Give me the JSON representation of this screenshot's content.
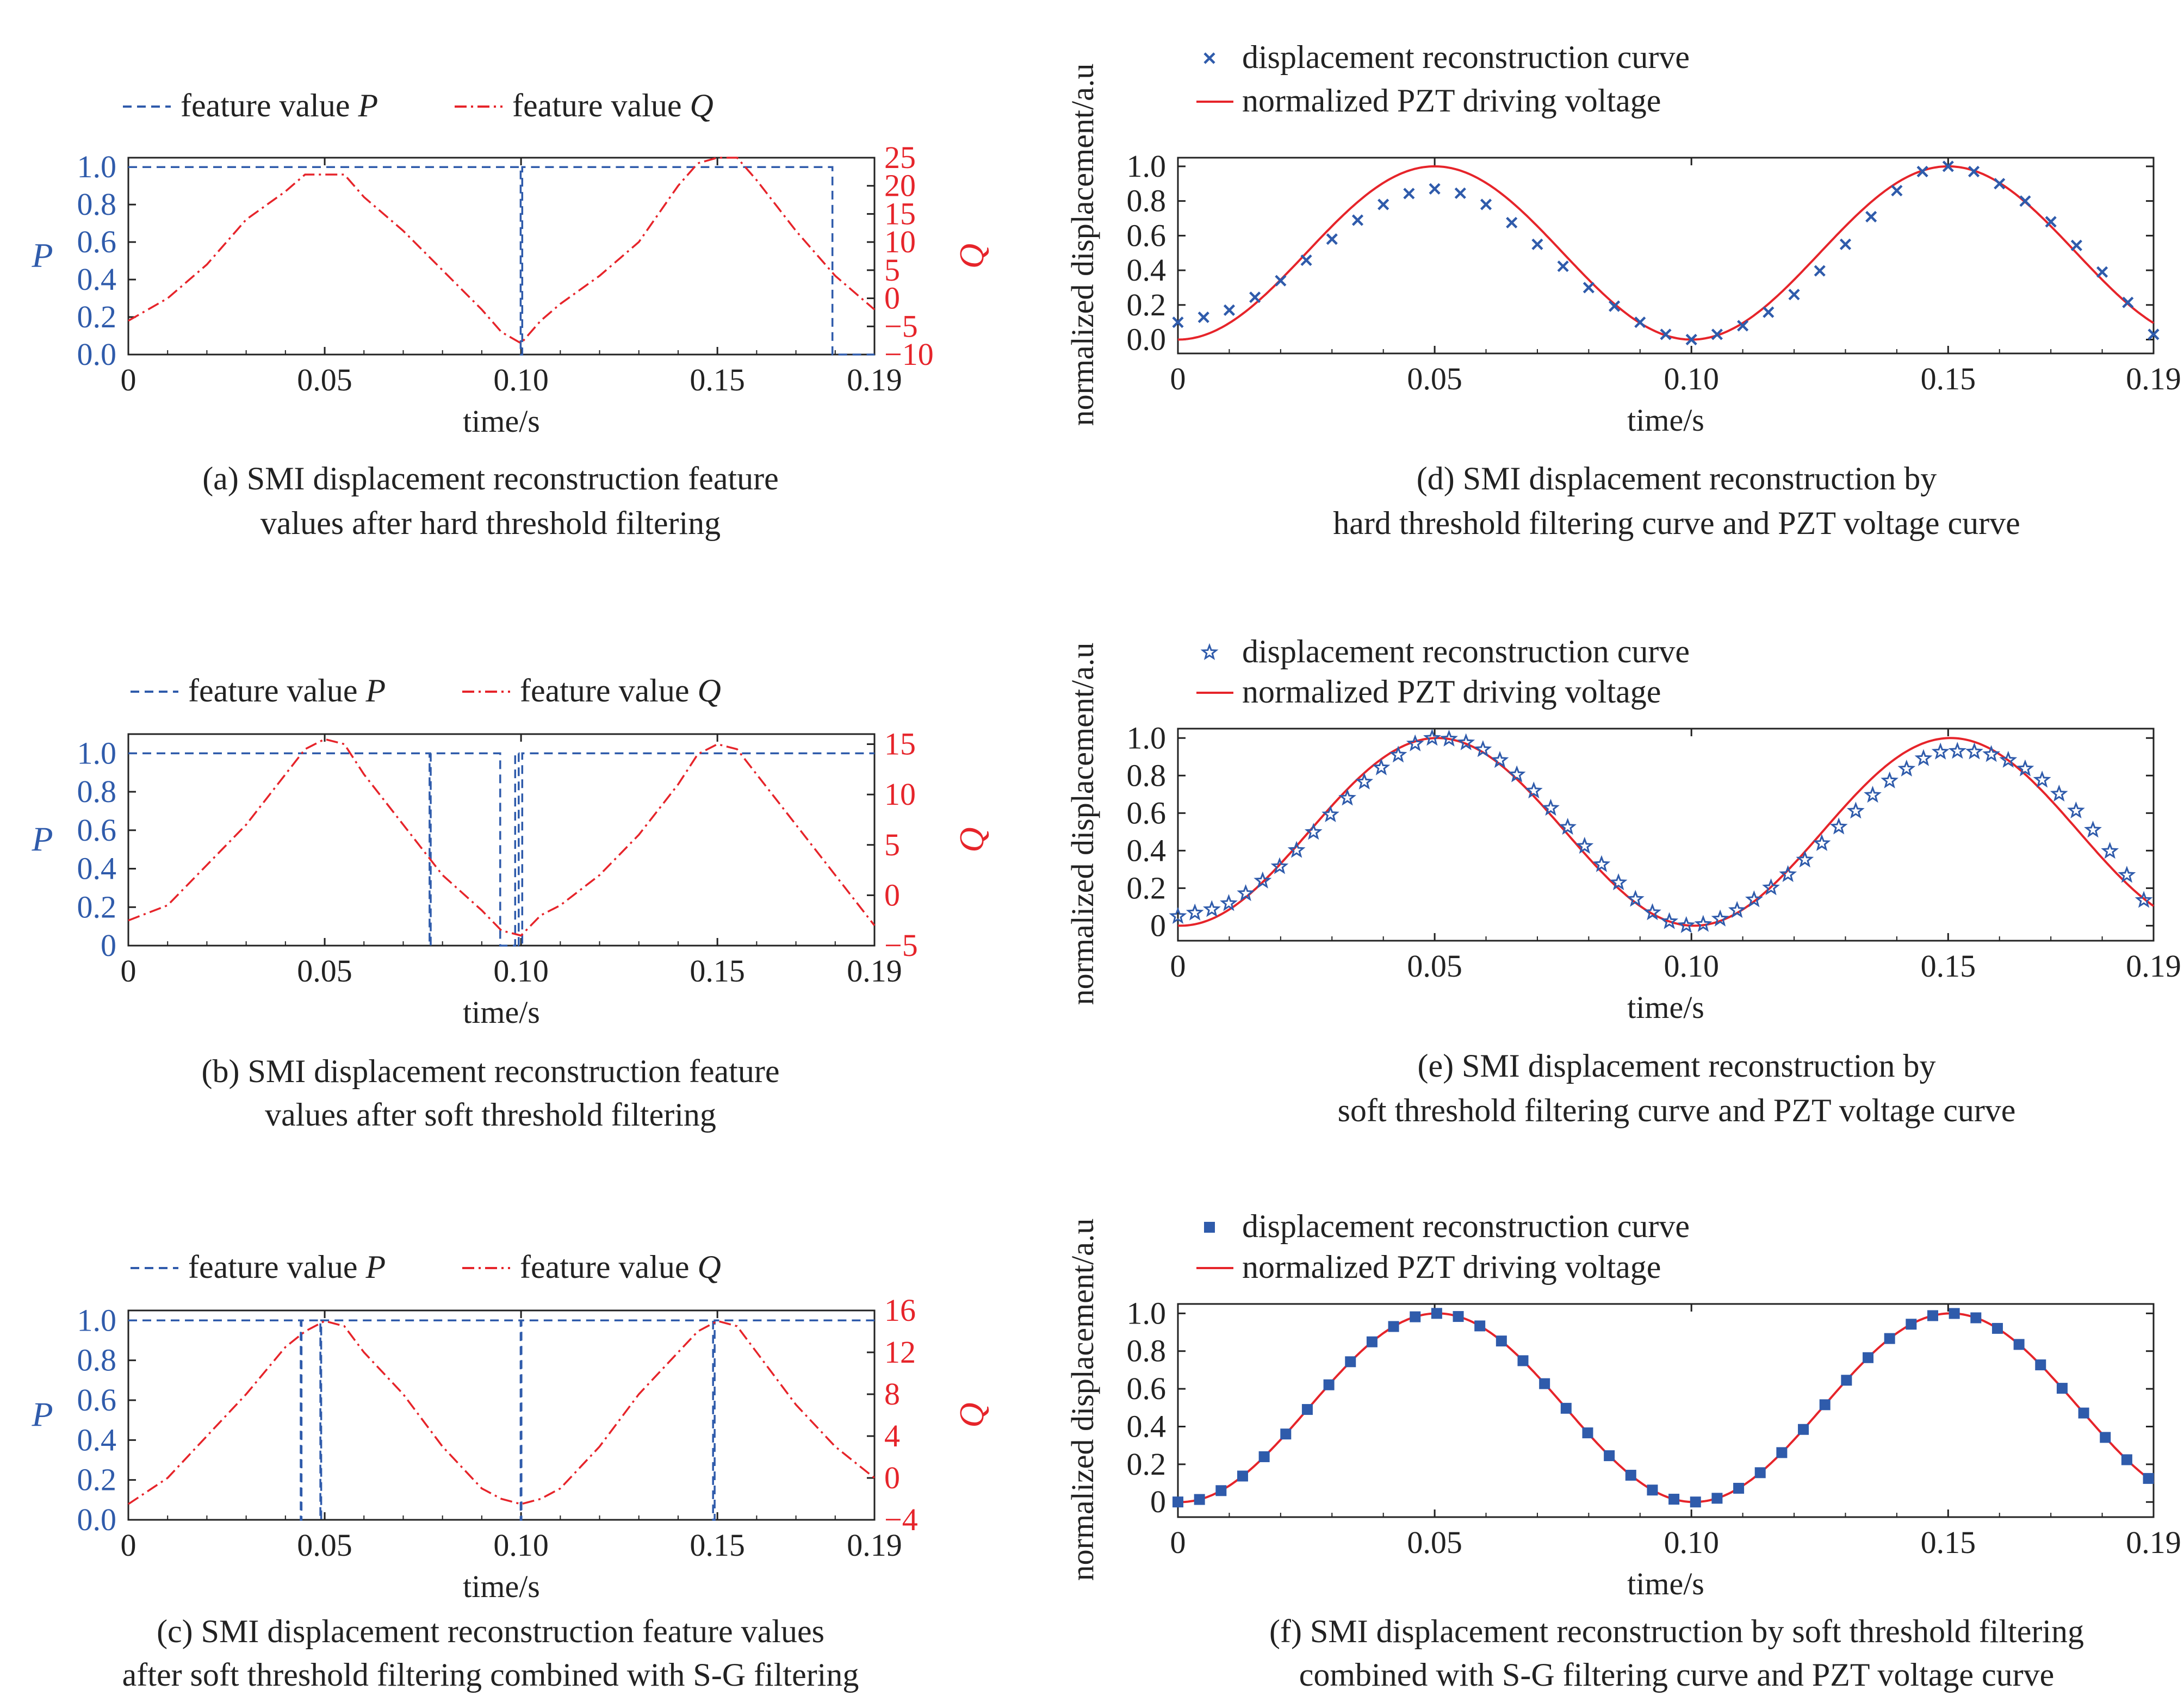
{
  "colors": {
    "p_series": "#2f5bab",
    "q_series": "#e6242a",
    "axis": "#222222",
    "text": "#222222"
  },
  "chart_data": [
    {
      "id": "a",
      "type": "line",
      "dual_axis": true,
      "caption": [
        "(a)  SMI displacement reconstruction feature",
        "values after hard threshold filtering"
      ],
      "xlabel": "time/s",
      "ylabel": "P",
      "y2label": "Q",
      "xlim": [
        0,
        0.19
      ],
      "xticks": [
        "0",
        "0.05",
        "0.10",
        "0.15",
        "0.19"
      ],
      "ylim": [
        0,
        1.05
      ],
      "yticks": [
        "0.0",
        "0.2",
        "0.4",
        "0.6",
        "0.8",
        "1.0"
      ],
      "y2lim": [
        -10,
        25
      ],
      "y2ticks": [
        "25",
        "20",
        "15",
        "10",
        "5",
        "0",
        "−5",
        "−10"
      ],
      "legend": [
        {
          "label": "feature value",
          "var": "P",
          "style": "dashed",
          "color": "#2f5bab"
        },
        {
          "label": "feature value",
          "var": "Q",
          "style": "dashdot",
          "color": "#e6242a"
        }
      ],
      "series": [
        {
          "name": "feature value P",
          "axis": "left",
          "x": [
            0,
            0.0999,
            0.0999,
            0.1003,
            0.1003,
            0.1793,
            0.1793,
            0.19
          ],
          "y": [
            1,
            1,
            0,
            0,
            1,
            1,
            0,
            0
          ]
        },
        {
          "name": "feature value Q",
          "axis": "right",
          "x": [
            0,
            0.01,
            0.02,
            0.03,
            0.04,
            0.045,
            0.05,
            0.055,
            0.06,
            0.07,
            0.08,
            0.09,
            0.095,
            0.1,
            0.105,
            0.11,
            0.12,
            0.13,
            0.14,
            0.145,
            0.15,
            0.155,
            0.16,
            0.17,
            0.18,
            0.19
          ],
          "y": [
            -4,
            0,
            6,
            14,
            19,
            22,
            22,
            22,
            18,
            12,
            5,
            -2,
            -6,
            -8,
            -4,
            -1,
            4,
            10,
            20,
            24,
            25,
            25,
            21,
            12,
            4,
            -2
          ]
        }
      ]
    },
    {
      "id": "b",
      "type": "line",
      "dual_axis": true,
      "caption": [
        "(b) SMI displacement reconstruction feature",
        "values after soft threshold filtering"
      ],
      "xlabel": "time/s",
      "ylabel": "P",
      "y2label": "Q",
      "xlim": [
        0,
        0.19
      ],
      "xticks": [
        "0",
        "0.05",
        "0.10",
        "0.15",
        "0.19"
      ],
      "ylim": [
        0,
        1.1
      ],
      "yticks": [
        "0",
        "0.2",
        "0.4",
        "0.6",
        "0.8",
        "1.0"
      ],
      "y2lim": [
        -5,
        16
      ],
      "y2ticks": [
        "15",
        "10",
        "5",
        "0",
        "−5"
      ],
      "legend": [
        {
          "label": "feature value",
          "var": "P",
          "style": "dashed",
          "color": "#2f5bab"
        },
        {
          "label": "feature value",
          "var": "Q",
          "style": "dashdot",
          "color": "#e6242a"
        }
      ],
      "series": [
        {
          "name": "feature value P",
          "axis": "left",
          "x": [
            0,
            0.0767,
            0.0767,
            0.077,
            0.077,
            0.0947,
            0.0947,
            0.0985,
            0.0985,
            0.0994,
            0.0994,
            0.1003,
            0.1003,
            0.19
          ],
          "y": [
            1,
            1,
            0,
            0,
            1,
            1,
            0,
            0,
            1,
            1,
            0,
            0,
            1,
            1
          ]
        },
        {
          "name": "feature value Q",
          "axis": "right",
          "x": [
            0,
            0.01,
            0.02,
            0.03,
            0.04,
            0.045,
            0.05,
            0.055,
            0.06,
            0.07,
            0.08,
            0.09,
            0.095,
            0.1,
            0.105,
            0.11,
            0.12,
            0.13,
            0.14,
            0.145,
            0.15,
            0.155,
            0.16,
            0.17,
            0.18,
            0.19
          ],
          "y": [
            -2.5,
            -1,
            3,
            7,
            12,
            14.5,
            15.5,
            15,
            12,
            7,
            2,
            -1.5,
            -3.5,
            -4,
            -2,
            -1,
            2,
            6,
            11,
            14,
            15,
            14.5,
            12,
            7,
            2,
            -3
          ]
        }
      ]
    },
    {
      "id": "c",
      "type": "line",
      "dual_axis": true,
      "caption": [
        "(c) SMI displacement reconstruction feature values",
        "after soft threshold filtering combined with S-G filtering"
      ],
      "xlabel": "time/s",
      "ylabel": "P",
      "y2label": "Q",
      "xlim": [
        0,
        0.19
      ],
      "xticks": [
        "0",
        "0.05",
        "0.10",
        "0.15",
        "0.19"
      ],
      "ylim": [
        0,
        1.05
      ],
      "yticks": [
        "0.0",
        "0.2",
        "0.4",
        "0.6",
        "0.8",
        "1.0"
      ],
      "y2lim": [
        -4,
        16
      ],
      "y2ticks": [
        "16",
        "12",
        "8",
        "4",
        "0",
        "−4"
      ],
      "legend": [
        {
          "label": "feature value",
          "var": "P",
          "style": "dashed",
          "color": "#2f5bab"
        },
        {
          "label": "feature value",
          "var": "Q",
          "style": "dashdot",
          "color": "#e6242a"
        }
      ],
      "series": [
        {
          "name": "feature value P",
          "axis": "left",
          "x": [
            0,
            0.0439,
            0.0439,
            0.0441,
            0.0441,
            0.0489,
            0.0489,
            0.0491,
            0.0491,
            0.0999,
            0.0999,
            0.1001,
            0.1001,
            0.1489,
            0.1489,
            0.1493,
            0.1493,
            0.19
          ],
          "y": [
            1,
            1,
            0,
            0,
            1,
            1,
            0,
            0,
            1,
            1,
            0,
            0,
            1,
            1,
            0,
            0,
            1,
            1
          ]
        },
        {
          "name": "feature value Q",
          "axis": "right",
          "x": [
            0,
            0.01,
            0.02,
            0.03,
            0.04,
            0.045,
            0.05,
            0.055,
            0.06,
            0.07,
            0.08,
            0.09,
            0.095,
            0.1,
            0.105,
            0.11,
            0.12,
            0.13,
            0.14,
            0.145,
            0.15,
            0.155,
            0.16,
            0.17,
            0.18,
            0.19
          ],
          "y": [
            -2.5,
            0,
            4,
            8,
            12.5,
            14,
            15,
            14.5,
            12,
            8,
            3,
            -1,
            -2,
            -2.5,
            -2,
            -1,
            3,
            8,
            12,
            14,
            15,
            14.5,
            12,
            7,
            3,
            0
          ]
        }
      ]
    },
    {
      "id": "d",
      "type": "line",
      "caption": [
        "(d) SMI displacement reconstruction by",
        "hard threshold filtering curve and PZT voltage curve"
      ],
      "xlabel": "time/s",
      "ylabel": "normalized displacement/a.u",
      "xlim": [
        0,
        0.19
      ],
      "xticks": [
        "0",
        "0.05",
        "0.10",
        "0.15",
        "0.19"
      ],
      "ylim": [
        -0.08,
        1.05
      ],
      "yticks": [
        "0.0",
        "0.2",
        "0.4",
        "0.6",
        "0.8",
        "1.0"
      ],
      "marker": "x",
      "legend": [
        {
          "label": "displacement reconstruction curve",
          "marker": "x",
          "color": "#2f5bab"
        },
        {
          "label": "normalized PZT driving voltage",
          "style": "solid",
          "color": "#e6242a"
        }
      ],
      "series": [
        {
          "name": "displacement reconstruction curve",
          "kind": "markers",
          "interpolate": "pchip",
          "step": 0.005,
          "x": [
            0,
            0.01,
            0.02,
            0.03,
            0.04,
            0.05,
            0.06,
            0.07,
            0.08,
            0.09,
            0.095,
            0.1,
            0.105,
            0.11,
            0.12,
            0.13,
            0.14,
            0.145,
            0.15,
            0.155,
            0.16,
            0.17,
            0.18,
            0.19
          ],
          "y": [
            0.1,
            0.17,
            0.34,
            0.58,
            0.78,
            0.87,
            0.78,
            0.55,
            0.3,
            0.1,
            0.03,
            0.0,
            0.03,
            0.08,
            0.26,
            0.55,
            0.86,
            0.97,
            1.0,
            0.97,
            0.9,
            0.68,
            0.39,
            0.03
          ]
        },
        {
          "name": "normalized PZT driving voltage",
          "kind": "cosine",
          "period": 0.1,
          "peak": 0.05,
          "phase_shift": 0
        }
      ]
    },
    {
      "id": "e",
      "type": "line",
      "caption": [
        "(e) SMI displacement reconstruction by",
        "soft threshold filtering curve and PZT voltage curve"
      ],
      "xlabel": "time/s",
      "ylabel": "normalized displacement/a.u",
      "xlim": [
        0,
        0.19
      ],
      "xticks": [
        "0",
        "0.05",
        "0.10",
        "0.15",
        "0.19"
      ],
      "ylim": [
        -0.08,
        1.05
      ],
      "yticks": [
        "0",
        "0.2",
        "0.4",
        "0.6",
        "0.8",
        "1.0"
      ],
      "marker": "star",
      "legend": [
        {
          "label": "displacement reconstruction curve",
          "marker": "star",
          "color": "#2f5bab"
        },
        {
          "label": "normalized PZT driving voltage",
          "style": "solid",
          "color": "#e6242a"
        }
      ],
      "series": [
        {
          "name": "displacement reconstruction curve",
          "kind": "markers",
          "interpolate": "pchip",
          "step": 0.0033,
          "x": [
            0,
            0.01,
            0.02,
            0.03,
            0.04,
            0.05,
            0.06,
            0.07,
            0.08,
            0.09,
            0.095,
            0.1,
            0.105,
            0.11,
            0.12,
            0.13,
            0.14,
            0.15,
            0.16,
            0.17,
            0.18,
            0.19
          ],
          "y": [
            0.05,
            0.12,
            0.32,
            0.6,
            0.85,
            1.0,
            0.93,
            0.7,
            0.4,
            0.12,
            0.03,
            0.0,
            0.03,
            0.1,
            0.3,
            0.56,
            0.8,
            0.93,
            0.9,
            0.74,
            0.45,
            0.06
          ]
        },
        {
          "name": "normalized PZT driving voltage",
          "kind": "cosine",
          "period": 0.1,
          "peak": 0.0505,
          "phase_shift": 0
        }
      ]
    },
    {
      "id": "f",
      "type": "line",
      "caption": [
        "(f) SMI displacement reconstruction by soft threshold filtering",
        "combined with S-G filtering curve and PZT voltage curve"
      ],
      "xlabel": "time/s",
      "ylabel": "normalized displacement/a.u",
      "xlim": [
        0,
        0.19
      ],
      "xticks": [
        "0",
        "0.05",
        "0.10",
        "0.15",
        "0.19"
      ],
      "ylim": [
        -0.08,
        1.05
      ],
      "yticks": [
        "0",
        "0.2",
        "0.4",
        "0.6",
        "0.8",
        "1.0"
      ],
      "marker": "square",
      "legend": [
        {
          "label": "displacement reconstruction curve",
          "marker": "square",
          "color": "#2f5bab"
        },
        {
          "label": "normalized PZT driving voltage",
          "style": "solid",
          "color": "#e6242a"
        }
      ],
      "series": [
        {
          "name": "displacement reconstruction curve",
          "kind": "markers",
          "interpolate": "cosine",
          "step": 0.0042,
          "period": 0.1,
          "peak": 0.0505
        },
        {
          "name": "normalized PZT driving voltage",
          "kind": "cosine",
          "period": 0.1,
          "peak": 0.0505,
          "phase_shift": 0
        }
      ]
    }
  ]
}
